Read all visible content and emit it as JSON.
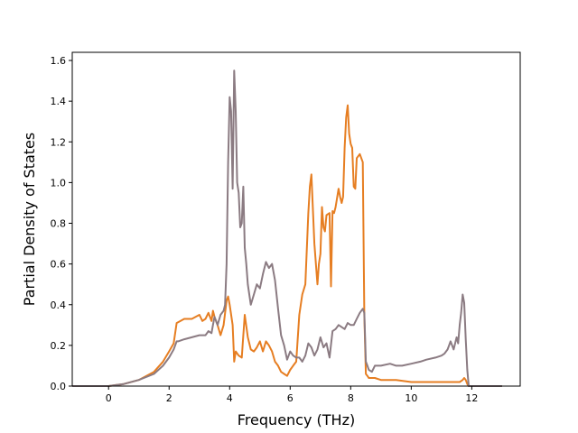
{
  "chart_data": {
    "type": "line",
    "title": "",
    "xlabel": "Frequency (THz)",
    "ylabel": "Partial Density of States",
    "xlim": [
      -1.2,
      13.6
    ],
    "ylim": [
      0.0,
      1.64
    ],
    "xticks": [
      0,
      2,
      4,
      6,
      8,
      10,
      12
    ],
    "xtick_labels": [
      "0",
      "2",
      "4",
      "6",
      "8",
      "10",
      "12"
    ],
    "yticks": [
      0.0,
      0.2,
      0.4,
      0.6,
      0.8,
      1.0,
      1.2,
      1.4,
      1.6
    ],
    "ytick_labels": [
      "0.0",
      "0.2",
      "0.4",
      "0.6",
      "0.8",
      "1.0",
      "1.2",
      "1.4",
      "1.6"
    ],
    "grid": false,
    "legend": "none",
    "series": [
      {
        "color": "#e67e22",
        "x": [
          -1.2,
          0.0,
          0.5,
          1.0,
          1.5,
          1.8,
          2.0,
          2.15,
          2.25,
          2.5,
          2.75,
          3.0,
          3.1,
          3.2,
          3.3,
          3.4,
          3.45,
          3.5,
          3.6,
          3.7,
          3.8,
          3.9,
          3.95,
          4.0,
          4.1,
          4.15,
          4.2,
          4.3,
          4.4,
          4.5,
          4.6,
          4.7,
          4.8,
          4.9,
          5.0,
          5.1,
          5.2,
          5.3,
          5.4,
          5.5,
          5.6,
          5.7,
          5.8,
          5.9,
          6.0,
          6.1,
          6.2,
          6.3,
          6.4,
          6.5,
          6.6,
          6.65,
          6.7,
          6.8,
          6.9,
          6.95,
          7.0,
          7.05,
          7.1,
          7.15,
          7.2,
          7.3,
          7.35,
          7.4,
          7.45,
          7.5,
          7.6,
          7.65,
          7.7,
          7.75,
          7.8,
          7.85,
          7.9,
          7.95,
          8.0,
          8.05,
          8.1,
          8.15,
          8.2,
          8.3,
          8.4,
          8.45,
          8.5,
          8.55,
          8.6,
          8.7,
          8.8,
          9.0,
          9.5,
          10.0,
          10.5,
          11.0,
          11.2,
          11.4,
          11.6,
          11.7,
          11.75,
          11.8,
          11.85,
          11.9,
          12.0,
          13.0
        ],
        "y": [
          0.0,
          0.0,
          0.01,
          0.03,
          0.07,
          0.12,
          0.17,
          0.21,
          0.31,
          0.33,
          0.33,
          0.35,
          0.32,
          0.33,
          0.36,
          0.32,
          0.37,
          0.34,
          0.3,
          0.25,
          0.3,
          0.42,
          0.44,
          0.4,
          0.3,
          0.12,
          0.17,
          0.15,
          0.14,
          0.35,
          0.24,
          0.18,
          0.17,
          0.19,
          0.22,
          0.17,
          0.22,
          0.2,
          0.17,
          0.12,
          0.1,
          0.07,
          0.06,
          0.05,
          0.08,
          0.1,
          0.12,
          0.35,
          0.45,
          0.5,
          0.85,
          0.98,
          1.04,
          0.7,
          0.5,
          0.6,
          0.65,
          0.88,
          0.78,
          0.76,
          0.84,
          0.85,
          0.49,
          0.86,
          0.85,
          0.88,
          0.97,
          0.93,
          0.9,
          0.93,
          1.17,
          1.32,
          1.38,
          1.24,
          1.19,
          1.17,
          0.98,
          0.97,
          1.12,
          1.14,
          1.1,
          0.35,
          0.06,
          0.05,
          0.04,
          0.04,
          0.04,
          0.03,
          0.03,
          0.02,
          0.02,
          0.02,
          0.02,
          0.02,
          0.02,
          0.03,
          0.04,
          0.03,
          0.01,
          0.0,
          0.0,
          0.0
        ]
      },
      {
        "color": "#8b7b82",
        "x": [
          -1.2,
          0.0,
          0.5,
          1.0,
          1.5,
          1.8,
          2.0,
          2.15,
          2.25,
          2.3,
          2.5,
          2.75,
          3.0,
          3.2,
          3.3,
          3.4,
          3.45,
          3.5,
          3.6,
          3.7,
          3.8,
          3.85,
          3.9,
          3.95,
          4.0,
          4.05,
          4.1,
          4.15,
          4.2,
          4.25,
          4.3,
          4.35,
          4.4,
          4.45,
          4.5,
          4.55,
          4.6,
          4.7,
          4.8,
          4.9,
          5.0,
          5.1,
          5.2,
          5.3,
          5.4,
          5.5,
          5.6,
          5.7,
          5.8,
          5.9,
          6.0,
          6.1,
          6.2,
          6.3,
          6.4,
          6.5,
          6.6,
          6.7,
          6.8,
          6.9,
          7.0,
          7.1,
          7.2,
          7.3,
          7.4,
          7.5,
          7.6,
          7.7,
          7.8,
          7.9,
          8.0,
          8.1,
          8.2,
          8.3,
          8.4,
          8.45,
          8.5,
          8.55,
          8.6,
          8.7,
          8.8,
          9.0,
          9.3,
          9.5,
          9.7,
          10.0,
          10.3,
          10.5,
          10.8,
          11.0,
          11.1,
          11.2,
          11.3,
          11.4,
          11.5,
          11.55,
          11.6,
          11.65,
          11.7,
          11.75,
          11.8,
          11.85,
          11.9,
          12.0,
          13.0
        ],
        "y": [
          0.0,
          0.0,
          0.01,
          0.03,
          0.06,
          0.1,
          0.14,
          0.18,
          0.22,
          0.22,
          0.23,
          0.24,
          0.25,
          0.25,
          0.27,
          0.26,
          0.3,
          0.34,
          0.3,
          0.35,
          0.37,
          0.4,
          0.6,
          1.1,
          1.42,
          1.35,
          0.97,
          1.55,
          1.35,
          1.0,
          0.95,
          0.78,
          0.8,
          0.98,
          0.68,
          0.6,
          0.5,
          0.4,
          0.45,
          0.5,
          0.48,
          0.55,
          0.61,
          0.58,
          0.6,
          0.52,
          0.38,
          0.25,
          0.2,
          0.13,
          0.17,
          0.15,
          0.14,
          0.14,
          0.12,
          0.15,
          0.21,
          0.19,
          0.15,
          0.18,
          0.24,
          0.19,
          0.21,
          0.14,
          0.27,
          0.28,
          0.3,
          0.29,
          0.28,
          0.31,
          0.3,
          0.3,
          0.33,
          0.36,
          0.38,
          0.36,
          0.12,
          0.1,
          0.08,
          0.07,
          0.1,
          0.1,
          0.11,
          0.1,
          0.1,
          0.11,
          0.12,
          0.13,
          0.14,
          0.15,
          0.16,
          0.18,
          0.22,
          0.18,
          0.24,
          0.21,
          0.3,
          0.36,
          0.45,
          0.41,
          0.23,
          0.08,
          0.0,
          0.0,
          0.0
        ]
      }
    ]
  }
}
